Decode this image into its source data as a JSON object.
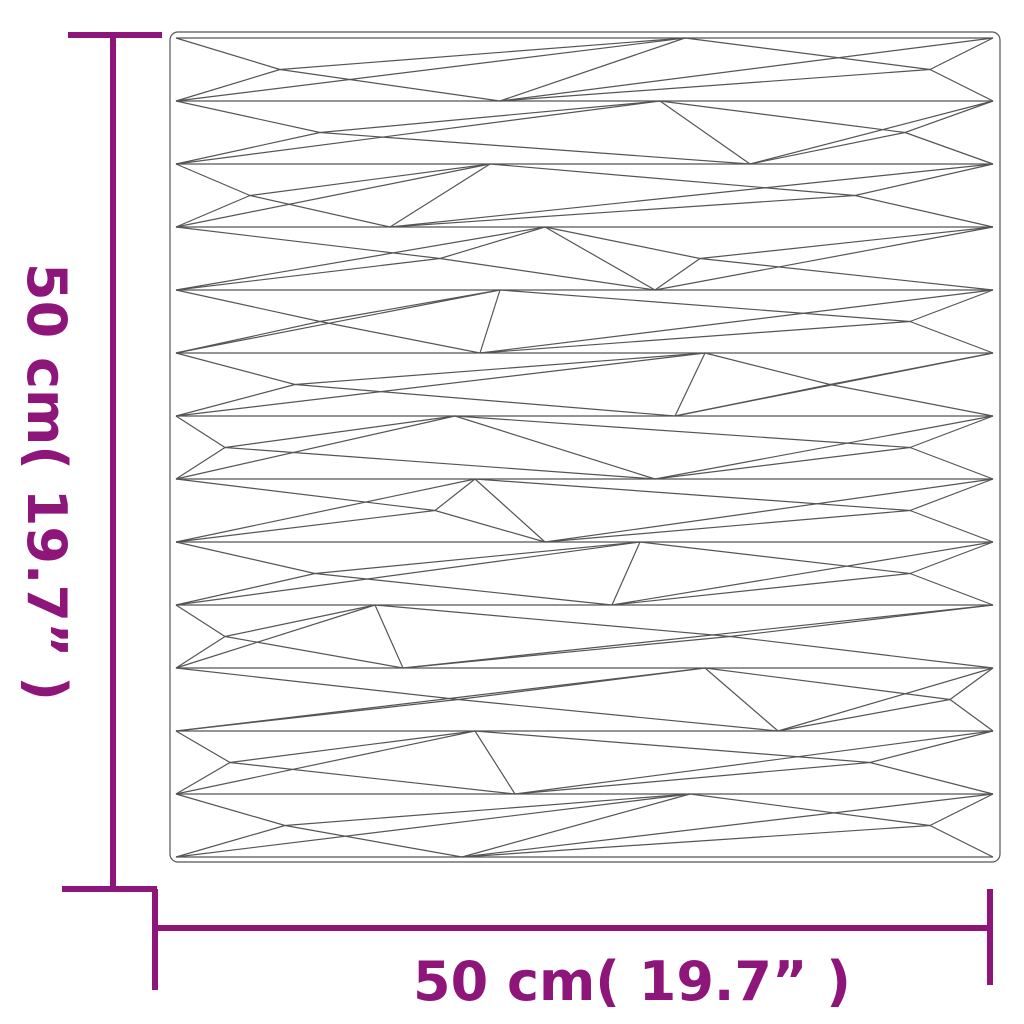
{
  "dimensions": {
    "width_label": "50 cm( 19.7” )",
    "height_label": "50 cm( 19.7” )"
  },
  "colors": {
    "dimension": "#8E1579",
    "panel_lines": "#555555"
  },
  "panel": {
    "rows": 13
  }
}
